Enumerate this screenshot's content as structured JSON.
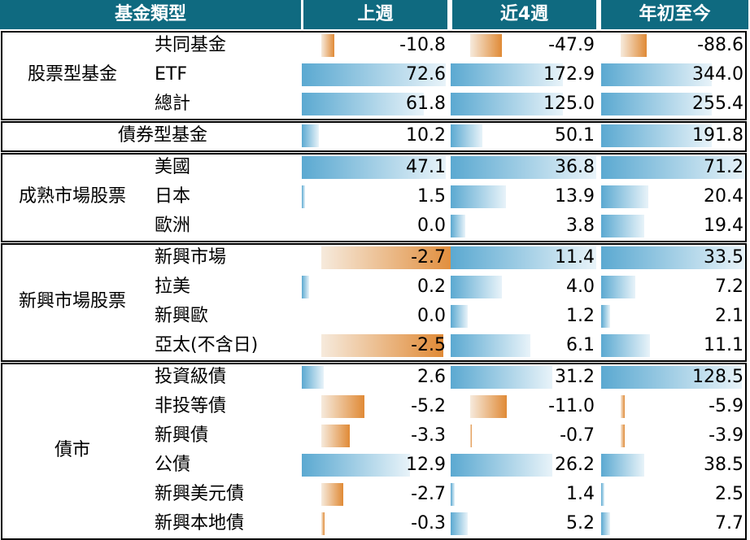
{
  "chart_data": {
    "type": "table",
    "headers": {
      "category": "基金類型",
      "week": "上週",
      "four_weeks": "近4週",
      "ytd": "年初至今"
    },
    "columns": [
      "week",
      "four_weeks",
      "ytd"
    ],
    "groups": [
      {
        "label": "股票型基金",
        "rows": [
          {
            "label": "共同基金",
            "week": "-10.8",
            "four_weeks": "-47.9",
            "ytd": "-88.6"
          },
          {
            "label": "ETF",
            "week": "72.6",
            "four_weeks": "172.9",
            "ytd": "344.0"
          },
          {
            "label": "總計",
            "week": "61.8",
            "four_weeks": "125.0",
            "ytd": "255.4"
          }
        ]
      },
      {
        "label": "債券型基金",
        "rows": [
          {
            "label": "",
            "week": "10.2",
            "four_weeks": "50.1",
            "ytd": "191.8"
          }
        ]
      },
      {
        "label": "成熟市場股票",
        "rows": [
          {
            "label": "美國",
            "week": "47.1",
            "four_weeks": "36.8",
            "ytd": "71.2"
          },
          {
            "label": "日本",
            "week": "1.5",
            "four_weeks": "13.9",
            "ytd": "20.4"
          },
          {
            "label": "歐洲",
            "week": "0.0",
            "four_weeks": "3.8",
            "ytd": "19.4"
          }
        ]
      },
      {
        "label": "新興市場股票",
        "rows": [
          {
            "label": "新興市場",
            "week": "-2.7",
            "four_weeks": "11.4",
            "ytd": "33.5"
          },
          {
            "label": "拉美",
            "week": "0.2",
            "four_weeks": "4.0",
            "ytd": "7.2"
          },
          {
            "label": "新興歐",
            "week": "0.0",
            "four_weeks": "1.2",
            "ytd": "2.1"
          },
          {
            "label": "亞太(不含日)",
            "week": "-2.5",
            "four_weeks": "6.1",
            "ytd": "11.1"
          }
        ]
      },
      {
        "label": "債市",
        "rows": [
          {
            "label": "投資級債",
            "week": "2.6",
            "four_weeks": "31.2",
            "ytd": "128.5"
          },
          {
            "label": "非投等債",
            "week": "-5.2",
            "four_weeks": "-11.0",
            "ytd": "-5.9"
          },
          {
            "label": "新興債",
            "week": "-3.3",
            "four_weeks": "-0.7",
            "ytd": "-3.9"
          },
          {
            "label": "公債",
            "week": "12.9",
            "four_weeks": "26.2",
            "ytd": "38.5"
          },
          {
            "label": "新興美元債",
            "week": "-2.7",
            "four_weeks": "1.4",
            "ytd": "2.5"
          },
          {
            "label": "新興本地債",
            "week": "-0.3",
            "four_weeks": "5.2",
            "ytd": "7.7"
          }
        ]
      }
    ],
    "bar_fractions": {
      "week": [
        0.09,
        1.0,
        0.85,
        0.12,
        1.0,
        0.02,
        0.0,
        0.95,
        0.05,
        0.0,
        0.85,
        0.15,
        0.3,
        0.2,
        0.75,
        0.15,
        0.02
      ],
      "four_weeks": [
        0.22,
        0.77,
        0.77,
        0.22,
        1.0,
        0.38,
        0.1,
        1.0,
        0.35,
        0.12,
        0.55,
        0.7,
        0.25,
        0.01,
        0.7,
        0.03,
        0.12
      ],
      "ytd": [
        0.18,
        0.77,
        0.77,
        0.77,
        1.0,
        0.33,
        0.3,
        1.0,
        0.24,
        0.06,
        0.34,
        0.98,
        0.03,
        0.03,
        0.3,
        0.02,
        0.06
      ]
    },
    "colors": {
      "header_bg": "#0f6a80",
      "header_text": "#ffffff",
      "positive_bar": "#5ba9d1",
      "negative_bar": "#e08a36"
    }
  }
}
